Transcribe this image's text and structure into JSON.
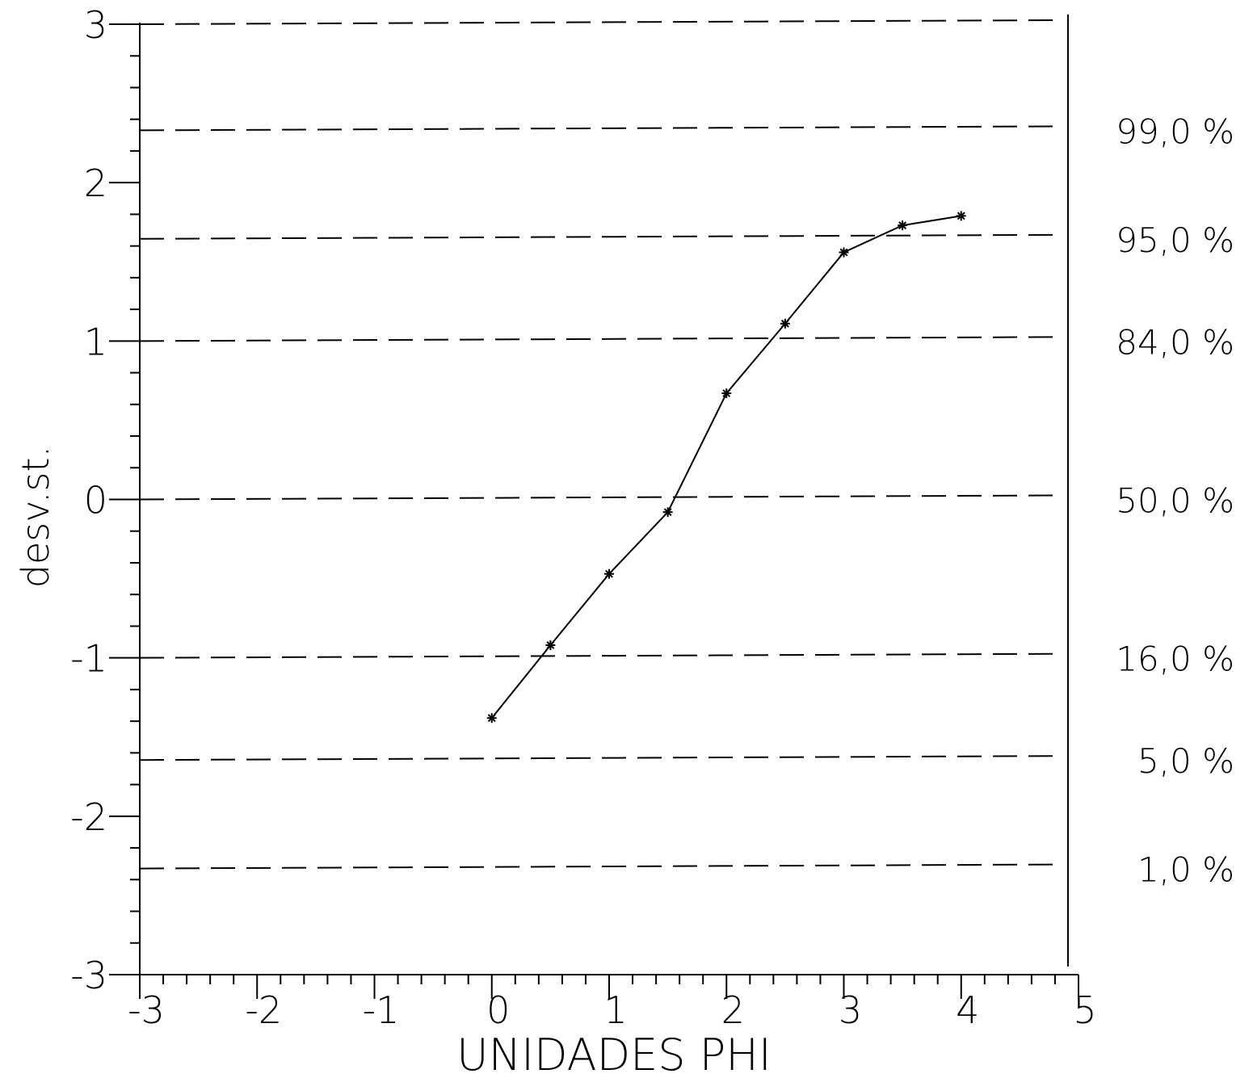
{
  "chart_data": {
    "type": "line",
    "title": "",
    "xlabel": "UNIDADES PHI",
    "ylabel": "desv.st.",
    "xlim": [
      -3,
      5
    ],
    "ylim": [
      -3,
      3
    ],
    "x_ticks": [
      "-3",
      "-2",
      "-1",
      "0",
      "1",
      "2",
      "3",
      "4",
      "5"
    ],
    "y_ticks": [
      "3",
      "2",
      "1",
      "0",
      "-1",
      "-2",
      "-3"
    ],
    "grid": false,
    "reference_lines": [
      {
        "y": 3.0,
        "label": ""
      },
      {
        "y": 2.33,
        "label": "99,0 %"
      },
      {
        "y": 1.645,
        "label": "95,0 %"
      },
      {
        "y": 1.0,
        "label": "84,0 %"
      },
      {
        "y": 0.0,
        "label": "50,0 %"
      },
      {
        "y": -1.0,
        "label": "16,0 %"
      },
      {
        "y": -1.645,
        "label": "5,0 %"
      },
      {
        "y": -2.33,
        "label": "1,0 %"
      }
    ],
    "series": [
      {
        "marker": "asterisk",
        "color": "#000000",
        "x": [
          0,
          0.5,
          1.0,
          1.5,
          2.0,
          2.5,
          3.0,
          3.5,
          4.0
        ],
        "y": [
          -1.38,
          -0.92,
          -0.47,
          -0.08,
          0.67,
          1.11,
          1.56,
          1.73,
          1.79
        ]
      }
    ]
  }
}
